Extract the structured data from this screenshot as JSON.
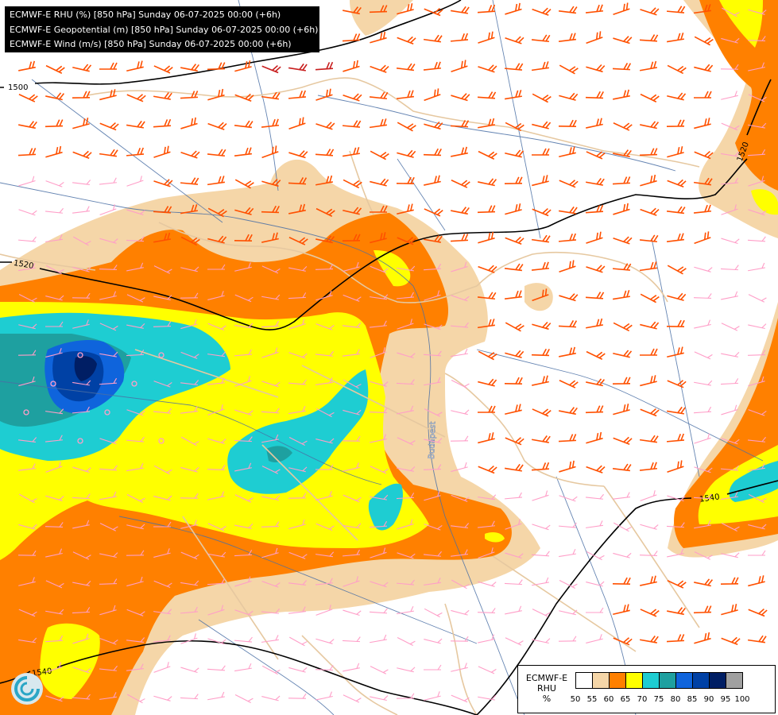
{
  "title_lines": [
    "ECMWF-E RHU (%) [850 hPa] Sunday 06-07-2025 00:00 (+6h)",
    "ECMWF-E Geopotential (m) [850 hPa] Sunday 06-07-2025 00:00 (+6h)",
    "ECMWF-E Wind (m/s) [850 hPa] Sunday 06-07-2025 00:00 (+6h)"
  ],
  "legend": {
    "title_line1": "ECMWF-E",
    "title_line2": "RHU",
    "unit": "%",
    "colors": [
      "#ffffff",
      "#f5d6a8",
      "#ff8000",
      "#ffff00",
      "#1ecdd2",
      "#1ea0a0",
      "#0f64dc",
      "#0041a5",
      "#001e64",
      "#a0a0a0",
      "#646464"
    ],
    "ticks": [
      "50",
      "55",
      "60",
      "65",
      "70",
      "75",
      "80",
      "85",
      "90",
      "95",
      "100"
    ]
  },
  "contours": [
    {
      "label": "1500"
    },
    {
      "label": "1520"
    },
    {
      "label": "1520"
    },
    {
      "label": "1540"
    },
    {
      "label": "1540"
    }
  ],
  "place_label": "Budapest",
  "colors": {
    "line_contour": "#000000",
    "border": "#e6c8a0",
    "river": "#4a6fa5",
    "barb_strong": "#ff5000",
    "barb_weak": "#ff9ec8",
    "barb_max": "#c81e1e"
  }
}
